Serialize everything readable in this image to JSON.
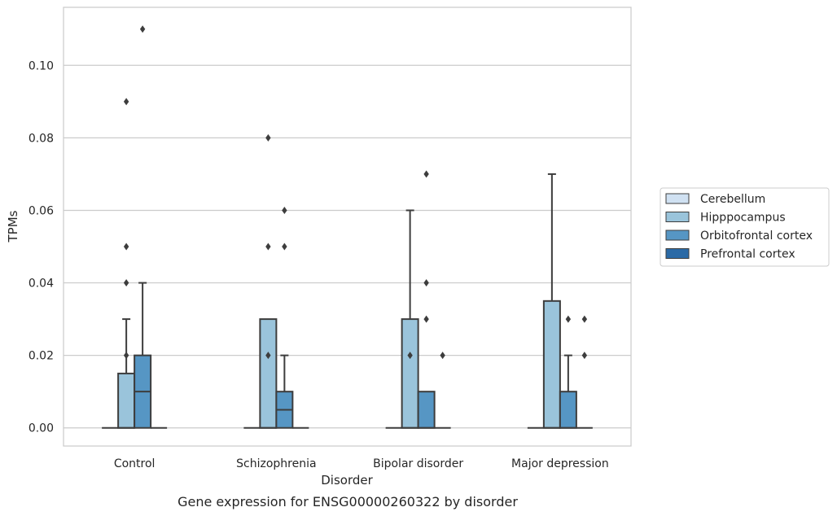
{
  "chart_data": {
    "type": "box",
    "title": "",
    "caption": "Gene expression for ENSG00000260322 by disorder",
    "xlabel": "Disorder",
    "ylabel": "TPMs",
    "ylim": [
      -0.005,
      0.116
    ],
    "yticks": [
      0.0,
      0.02,
      0.04,
      0.06,
      0.08,
      0.1
    ],
    "ytick_labels": [
      "0.00",
      "0.02",
      "0.04",
      "0.06",
      "0.08",
      "0.10"
    ],
    "grid": "horizontal",
    "legend_position": "right",
    "categories": [
      "Control",
      "Schizophrenia",
      "Bipolar disorder",
      "Major depression"
    ],
    "series": [
      {
        "name": "Cerebellum",
        "color": "#d0e1f2",
        "boxes": [
          {
            "q1": 0,
            "median": 0,
            "q3": 0,
            "whislo": 0,
            "whishi": 0,
            "fliers": []
          },
          {
            "q1": 0,
            "median": 0,
            "q3": 0,
            "whislo": 0,
            "whishi": 0,
            "fliers": []
          },
          {
            "q1": 0,
            "median": 0,
            "q3": 0,
            "whislo": 0,
            "whishi": 0,
            "fliers": []
          },
          {
            "q1": 0,
            "median": 0,
            "q3": 0,
            "whislo": 0,
            "whishi": 0,
            "fliers": []
          }
        ]
      },
      {
        "name": "Hipppocampus",
        "color": "#9ac4db",
        "boxes": [
          {
            "q1": 0,
            "median": 0,
            "q3": 0.015,
            "whislo": 0,
            "whishi": 0.03,
            "fliers": [
              0.02,
              0.04,
              0.05,
              0.09
            ]
          },
          {
            "q1": 0,
            "median": 0,
            "q3": 0.03,
            "whislo": 0,
            "whishi": 0.03,
            "fliers": [
              0.02,
              0.05,
              0.08
            ]
          },
          {
            "q1": 0,
            "median": 0,
            "q3": 0.03,
            "whislo": 0,
            "whishi": 0.06,
            "fliers": [
              0.02
            ]
          },
          {
            "q1": 0,
            "median": 0,
            "q3": 0.035,
            "whislo": 0,
            "whishi": 0.07,
            "fliers": []
          }
        ]
      },
      {
        "name": "Orbitofrontal cortex",
        "color": "#5696c4",
        "boxes": [
          {
            "q1": 0,
            "median": 0.01,
            "q3": 0.02,
            "whislo": 0,
            "whishi": 0.04,
            "fliers": [
              0.11
            ]
          },
          {
            "q1": 0,
            "median": 0.005,
            "q3": 0.01,
            "whislo": 0,
            "whishi": 0.02,
            "fliers": [
              0.05,
              0.06
            ]
          },
          {
            "q1": 0,
            "median": 0,
            "q3": 0.01,
            "whislo": 0,
            "whishi": 0.01,
            "fliers": [
              0.03,
              0.04,
              0.07
            ]
          },
          {
            "q1": 0,
            "median": 0,
            "q3": 0.01,
            "whislo": 0,
            "whishi": 0.02,
            "fliers": [
              0.03
            ]
          }
        ]
      },
      {
        "name": "Prefrontal cortex",
        "color": "#2b6aa6",
        "boxes": [
          {
            "q1": 0,
            "median": 0,
            "q3": 0,
            "whislo": 0,
            "whishi": 0,
            "fliers": []
          },
          {
            "q1": 0,
            "median": 0,
            "q3": 0,
            "whislo": 0,
            "whishi": 0,
            "fliers": []
          },
          {
            "q1": 0,
            "median": 0,
            "q3": 0,
            "whislo": 0,
            "whishi": 0,
            "fliers": [
              0.02
            ]
          },
          {
            "q1": 0,
            "median": 0,
            "q3": 0,
            "whislo": 0,
            "whishi": 0,
            "fliers": [
              0.02,
              0.03
            ]
          }
        ]
      }
    ]
  }
}
